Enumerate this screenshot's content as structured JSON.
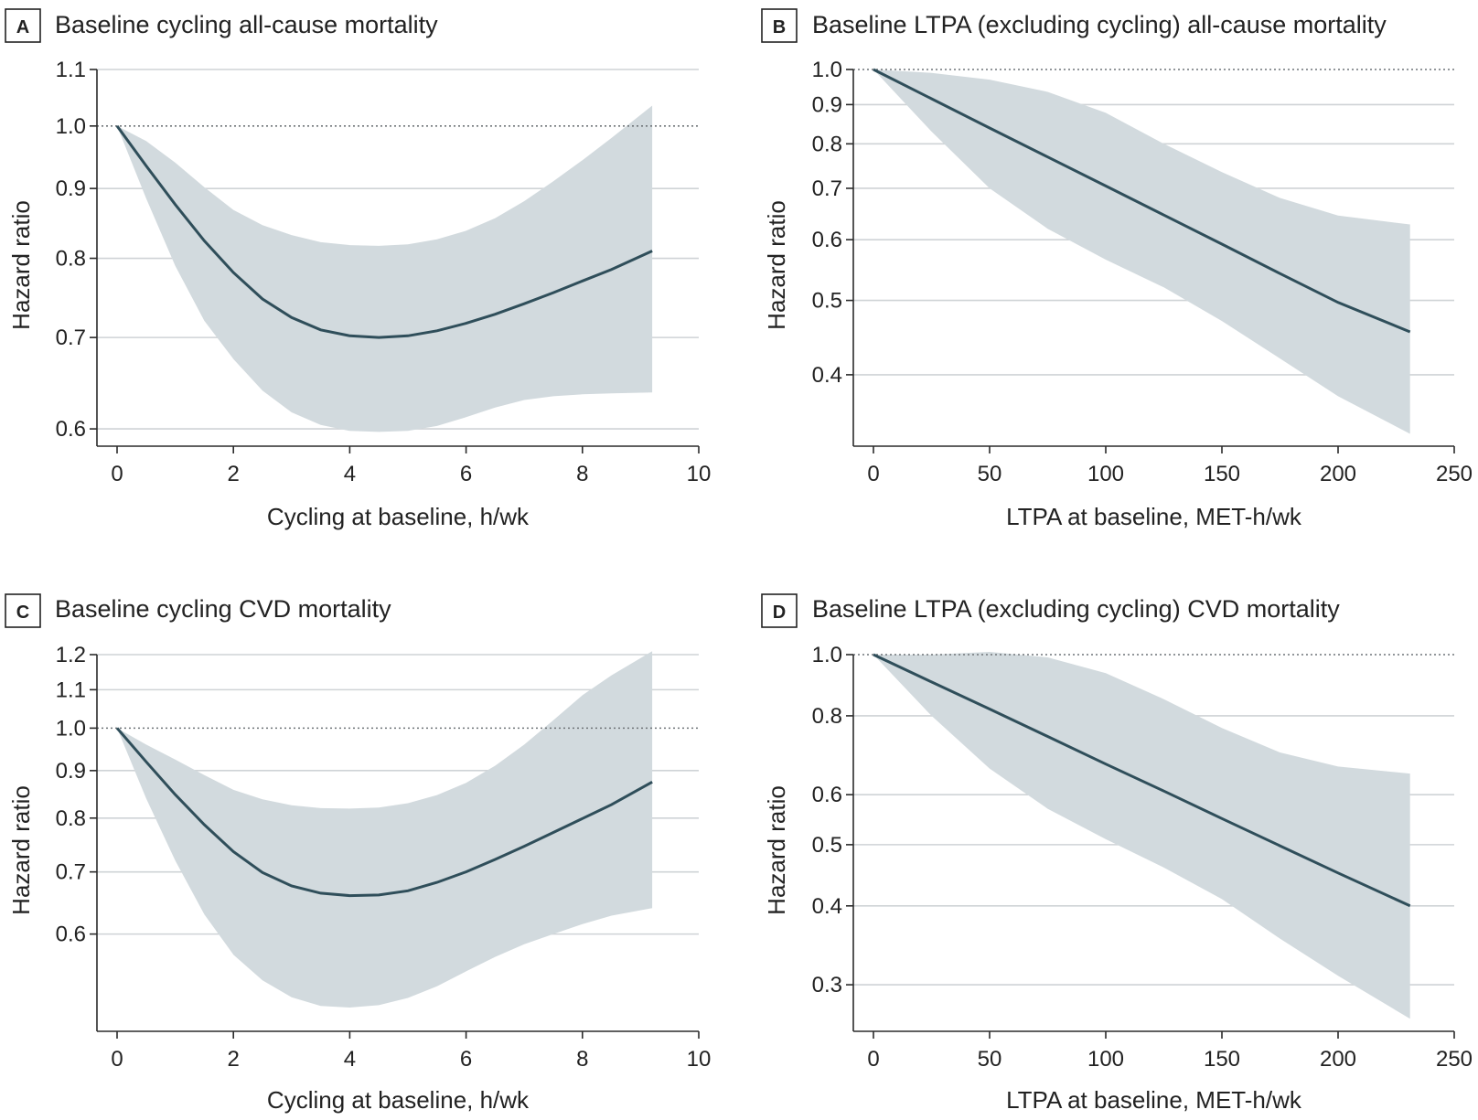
{
  "chart_data": [
    {
      "type": "line",
      "panel_letter": "A",
      "title": "Baseline cycling all-cause mortality",
      "xlabel": "Cycling at baseline, h/wk",
      "ylabel": "Hazard ratio",
      "xlim": [
        0,
        10
      ],
      "ylim": [
        0.59,
        1.1
      ],
      "y_scale": "log",
      "x_ticks": [
        0,
        2,
        4,
        6,
        8,
        10
      ],
      "y_ticks": [
        0.6,
        0.7,
        0.8,
        0.9,
        1.0,
        1.1
      ],
      "y_tick_labels": [
        "0.6",
        "0.7",
        "0.8",
        "0.9",
        "1.0",
        "1.1"
      ],
      "reference_line": 1.0,
      "grid": true,
      "series": [
        {
          "x": [
            0,
            0.5,
            1,
            1.5,
            2,
            2.5,
            3,
            3.5,
            4,
            4.5,
            5,
            5.5,
            6,
            6.5,
            7,
            7.5,
            8,
            8.5,
            9.2
          ],
          "values": [
            1.0,
            0.935,
            0.876,
            0.824,
            0.781,
            0.747,
            0.724,
            0.709,
            0.702,
            0.7,
            0.702,
            0.708,
            0.717,
            0.728,
            0.741,
            0.755,
            0.77,
            0.785,
            0.81
          ],
          "lower": [
            1.0,
            0.885,
            0.79,
            0.72,
            0.675,
            0.64,
            0.617,
            0.604,
            0.598,
            0.597,
            0.598,
            0.603,
            0.612,
            0.622,
            0.63,
            0.634,
            0.636,
            0.637,
            0.638
          ],
          "upper": [
            1.0,
            0.975,
            0.94,
            0.902,
            0.868,
            0.846,
            0.832,
            0.822,
            0.818,
            0.817,
            0.819,
            0.826,
            0.838,
            0.856,
            0.881,
            0.911,
            0.944,
            0.98,
            1.035
          ]
        }
      ]
    },
    {
      "type": "line",
      "panel_letter": "B",
      "title": "Baseline LTPA (excluding cycling) all-cause mortality",
      "xlabel": "LTPA at baseline, MET-h/wk",
      "ylabel": "Hazard ratio",
      "xlim": [
        0,
        250
      ],
      "ylim": [
        0.33,
        1.0
      ],
      "y_scale": "log",
      "x_ticks": [
        0,
        50,
        100,
        150,
        200,
        250
      ],
      "y_ticks": [
        0.4,
        0.5,
        0.6,
        0.7,
        0.8,
        0.9,
        1.0
      ],
      "y_tick_labels": [
        "0.4",
        "0.5",
        "0.6",
        "0.7",
        "0.8",
        "0.9",
        "1.0"
      ],
      "reference_line": 1.0,
      "grid": true,
      "series": [
        {
          "x": [
            0,
            25,
            50,
            75,
            100,
            125,
            150,
            175,
            200,
            231
          ],
          "values": [
            1.0,
            0.916,
            0.839,
            0.769,
            0.705,
            0.646,
            0.592,
            0.542,
            0.497,
            0.455
          ],
          "lower": [
            1.0,
            0.83,
            0.7,
            0.62,
            0.565,
            0.52,
            0.47,
            0.42,
            0.375,
            0.335
          ],
          "upper": [
            1.0,
            0.99,
            0.97,
            0.935,
            0.878,
            0.8,
            0.735,
            0.68,
            0.645,
            0.628
          ]
        }
      ]
    },
    {
      "type": "line",
      "panel_letter": "C",
      "title": "Baseline cycling CVD mortality",
      "xlabel": "Cycling at baseline, h/wk",
      "ylabel": "Hazard ratio",
      "xlim": [
        0,
        10
      ],
      "ylim": [
        0.48,
        1.2
      ],
      "y_scale": "log",
      "x_ticks": [
        0,
        2,
        4,
        6,
        8,
        10
      ],
      "y_ticks": [
        0.6,
        0.7,
        0.8,
        0.9,
        1.0,
        1.1,
        1.2
      ],
      "y_tick_labels": [
        "0.6",
        "0.7",
        "0.8",
        "0.9",
        "1.0",
        "1.1",
        "1.2"
      ],
      "reference_line": 1.0,
      "grid": true,
      "series": [
        {
          "x": [
            0,
            0.5,
            1,
            1.5,
            2,
            2.5,
            3,
            3.5,
            4,
            4.5,
            5,
            5.5,
            6,
            6.5,
            7,
            7.5,
            8,
            8.5,
            9.2
          ],
          "values": [
            1.0,
            0.92,
            0.848,
            0.787,
            0.736,
            0.699,
            0.676,
            0.664,
            0.66,
            0.661,
            0.668,
            0.682,
            0.7,
            0.722,
            0.746,
            0.772,
            0.799,
            0.827,
            0.875
          ],
          "lower": [
            1.0,
            0.84,
            0.72,
            0.63,
            0.57,
            0.535,
            0.513,
            0.502,
            0.5,
            0.503,
            0.512,
            0.527,
            0.547,
            0.567,
            0.585,
            0.6,
            0.615,
            0.628,
            0.64
          ],
          "upper": [
            1.0,
            0.96,
            0.925,
            0.89,
            0.858,
            0.838,
            0.826,
            0.82,
            0.819,
            0.821,
            0.83,
            0.847,
            0.873,
            0.911,
            0.96,
            1.02,
            1.085,
            1.14,
            1.21
          ]
        }
      ]
    },
    {
      "type": "line",
      "panel_letter": "D",
      "title": "Baseline LTPA (excluding cycling) CVD mortality",
      "xlabel": "LTPA at baseline, MET-h/wk",
      "ylabel": "Hazard ratio",
      "xlim": [
        0,
        250
      ],
      "ylim": [
        0.26,
        1.0
      ],
      "y_scale": "log",
      "x_ticks": [
        0,
        50,
        100,
        150,
        200,
        250
      ],
      "y_ticks": [
        0.3,
        0.4,
        0.5,
        0.6,
        0.8,
        1.0
      ],
      "y_tick_labels": [
        "0.3",
        "0.4",
        "0.5",
        "0.6",
        "0.8",
        "1.0"
      ],
      "reference_line": 1.0,
      "grid": true,
      "series": [
        {
          "x": [
            0,
            25,
            50,
            75,
            100,
            125,
            150,
            175,
            200,
            231
          ],
          "values": [
            1.0,
            0.905,
            0.82,
            0.742,
            0.671,
            0.608,
            0.55,
            0.498,
            0.451,
            0.4
          ],
          "lower": [
            1.0,
            0.8,
            0.66,
            0.57,
            0.51,
            0.46,
            0.41,
            0.355,
            0.31,
            0.265
          ],
          "upper": [
            1.0,
            1.0,
            1.01,
            0.99,
            0.935,
            0.85,
            0.765,
            0.7,
            0.665,
            0.648
          ]
        }
      ]
    }
  ]
}
